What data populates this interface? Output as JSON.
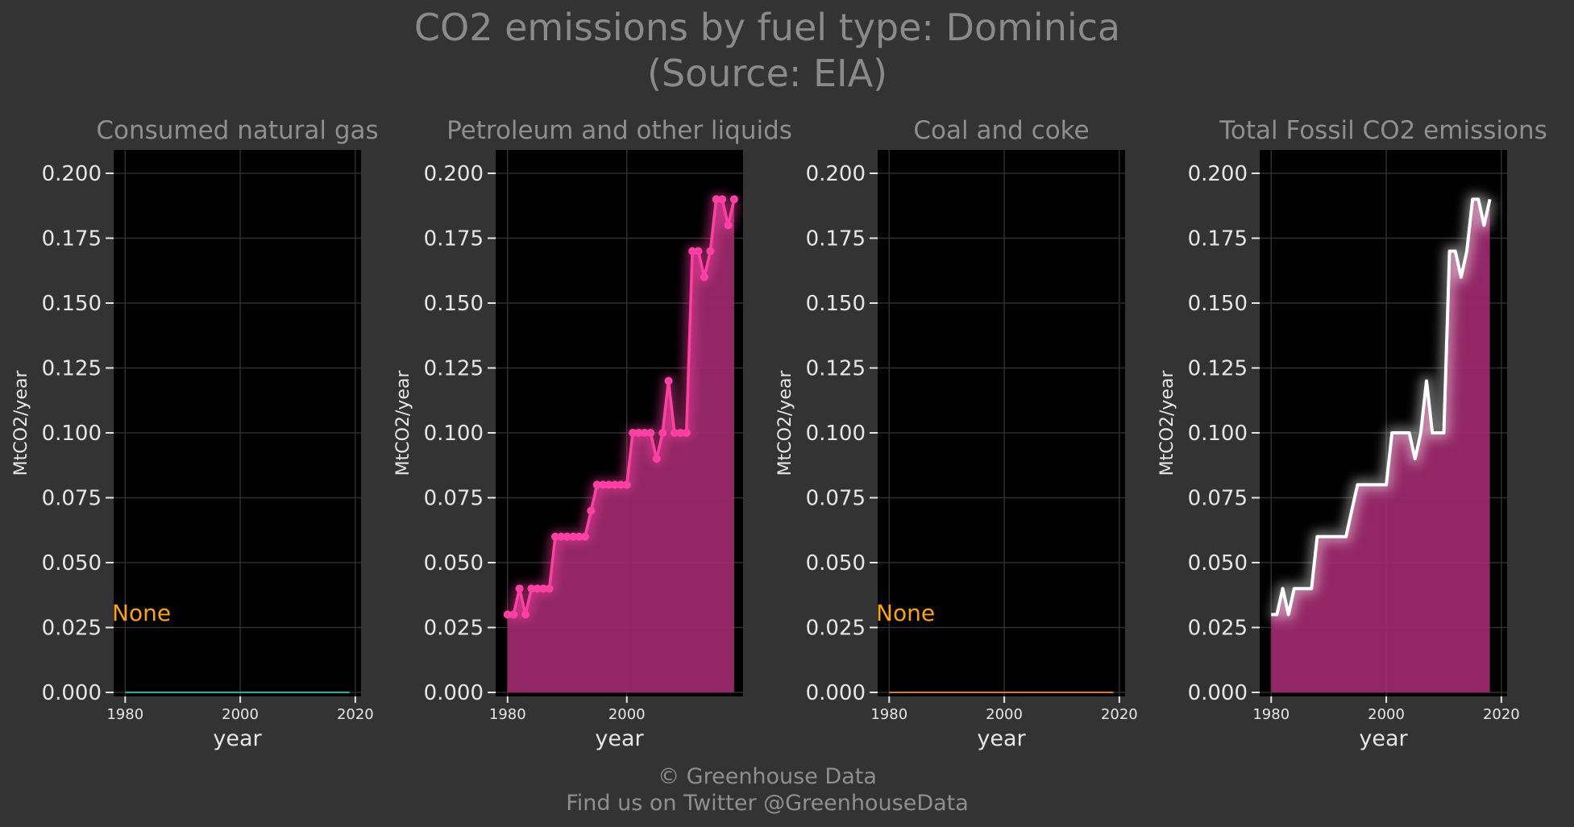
{
  "title": "CO2 emissions by fuel type: Dominica",
  "source": "(Source: EIA)",
  "footer": {
    "line1": "© Greenhouse Data",
    "line2": "Find us on Twitter @GreenhouseData"
  },
  "colors": {
    "background": "#333333",
    "panel": "#000000",
    "natural_gas": "#1ab3a6",
    "petroleum": "#ff3fa4",
    "petroleum_fill": "#a02a6e",
    "coal": "#d97a2b",
    "total_line": "#ffffff",
    "none_label": "#ffa500"
  },
  "chart_data": [
    {
      "type": "line",
      "subplot_title": "Consumed natural gas",
      "xlabel": "year",
      "ylabel": "MtCO2/year",
      "ylim": [
        0,
        0.2
      ],
      "xlim": [
        1978,
        2021
      ],
      "xticks": [
        "1980",
        "2000",
        "2020"
      ],
      "yticks": [
        "0.000",
        "0.025",
        "0.050",
        "0.075",
        "0.100",
        "0.125",
        "0.150",
        "0.175",
        "0.200"
      ],
      "grid": true,
      "annotation": "None",
      "series": [
        {
          "x": [
            1980,
            2019
          ],
          "y": [
            0,
            0
          ],
          "markers": false,
          "fill": false
        }
      ]
    },
    {
      "type": "area",
      "subplot_title": "Petroleum and other liquids",
      "xlabel": "year",
      "ylabel": "MtCO2/year",
      "ylim": [
        0,
        0.2
      ],
      "xlim": [
        1978,
        2019.5
      ],
      "xticks": [
        "1980",
        "2000"
      ],
      "yticks": [
        "0.000",
        "0.025",
        "0.050",
        "0.075",
        "0.100",
        "0.125",
        "0.150",
        "0.175",
        "0.200"
      ],
      "grid": true,
      "annotation": "",
      "series": [
        {
          "x": [
            1980,
            1981,
            1982,
            1983,
            1984,
            1985,
            1986,
            1987,
            1988,
            1989,
            1990,
            1991,
            1992,
            1993,
            1994,
            1995,
            1996,
            1997,
            1998,
            1999,
            2000,
            2001,
            2002,
            2003,
            2004,
            2005,
            2006,
            2007,
            2008,
            2009,
            2010,
            2011,
            2012,
            2013,
            2014,
            2015,
            2016,
            2017,
            2018
          ],
          "y": [
            0.03,
            0.03,
            0.04,
            0.03,
            0.04,
            0.04,
            0.04,
            0.04,
            0.06,
            0.06,
            0.06,
            0.06,
            0.06,
            0.06,
            0.07,
            0.08,
            0.08,
            0.08,
            0.08,
            0.08,
            0.08,
            0.1,
            0.1,
            0.1,
            0.1,
            0.09,
            0.1,
            0.12,
            0.1,
            0.1,
            0.1,
            0.17,
            0.17,
            0.16,
            0.17,
            0.19,
            0.19,
            0.18,
            0.19
          ],
          "markers": true,
          "fill": true
        }
      ]
    },
    {
      "type": "line",
      "subplot_title": "Coal and coke",
      "xlabel": "year",
      "ylabel": "MtCO2/year",
      "ylim": [
        0,
        0.2
      ],
      "xlim": [
        1978,
        2021
      ],
      "xticks": [
        "1980",
        "2000",
        "2020"
      ],
      "yticks": [
        "0.000",
        "0.025",
        "0.050",
        "0.075",
        "0.100",
        "0.125",
        "0.150",
        "0.175",
        "0.200"
      ],
      "grid": true,
      "annotation": "None",
      "series": [
        {
          "x": [
            1980,
            2019
          ],
          "y": [
            0,
            0
          ],
          "markers": false,
          "fill": false
        }
      ]
    },
    {
      "type": "area",
      "subplot_title": "Total Fossil CO2 emissions",
      "xlabel": "year",
      "ylabel": "MtCO2/year",
      "ylim": [
        0,
        0.2
      ],
      "xlim": [
        1978,
        2021
      ],
      "xticks": [
        "1980",
        "2000",
        "2020"
      ],
      "yticks": [
        "0.000",
        "0.025",
        "0.050",
        "0.075",
        "0.100",
        "0.125",
        "0.150",
        "0.175",
        "0.200"
      ],
      "grid": true,
      "annotation": "",
      "series": [
        {
          "x": [
            1980,
            1981,
            1982,
            1983,
            1984,
            1985,
            1986,
            1987,
            1988,
            1989,
            1990,
            1991,
            1992,
            1993,
            1994,
            1995,
            1996,
            1997,
            1998,
            1999,
            2000,
            2001,
            2002,
            2003,
            2004,
            2005,
            2006,
            2007,
            2008,
            2009,
            2010,
            2011,
            2012,
            2013,
            2014,
            2015,
            2016,
            2017,
            2018
          ],
          "y": [
            0.03,
            0.03,
            0.04,
            0.03,
            0.04,
            0.04,
            0.04,
            0.04,
            0.06,
            0.06,
            0.06,
            0.06,
            0.06,
            0.06,
            0.07,
            0.08,
            0.08,
            0.08,
            0.08,
            0.08,
            0.08,
            0.1,
            0.1,
            0.1,
            0.1,
            0.09,
            0.1,
            0.12,
            0.1,
            0.1,
            0.1,
            0.17,
            0.17,
            0.16,
            0.17,
            0.19,
            0.19,
            0.18,
            0.19
          ],
          "markers": false,
          "fill": true
        }
      ]
    }
  ]
}
